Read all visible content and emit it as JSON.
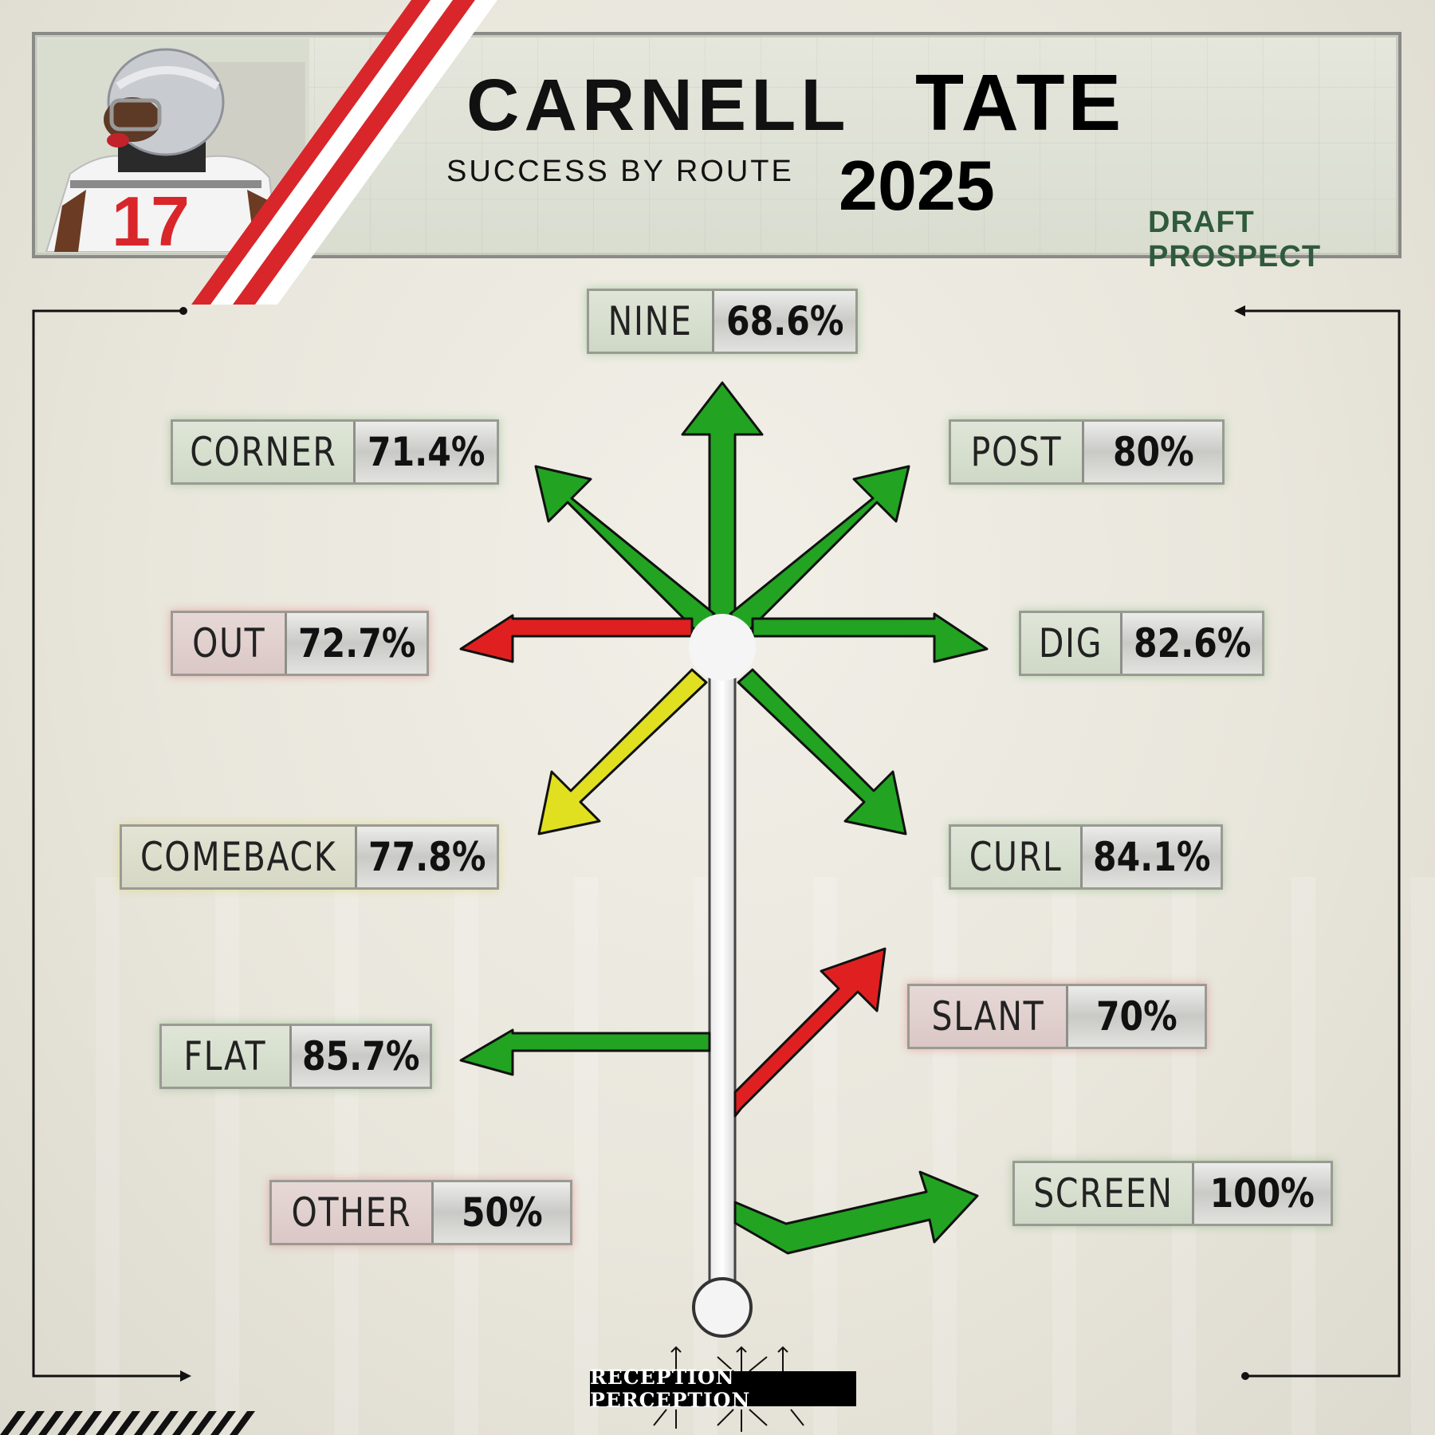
{
  "header": {
    "first_name": "CARNELL",
    "last_name": "TATE",
    "subtitle": "SUCCESS BY ROUTE",
    "year": "2025",
    "tag": "DRAFT PROSPECT",
    "jersey_number": "17"
  },
  "routes": [
    {
      "name": "NINE",
      "pct": "68.6%",
      "color": "#22a322"
    },
    {
      "name": "CORNER",
      "pct": "71.4%",
      "color": "#22a322"
    },
    {
      "name": "POST",
      "pct": "80%",
      "color": "#22a322"
    },
    {
      "name": "OUT",
      "pct": "72.7%",
      "color": "#e02020"
    },
    {
      "name": "DIG",
      "pct": "82.6%",
      "color": "#22a322"
    },
    {
      "name": "COMEBACK",
      "pct": "77.8%",
      "color": "#e0e020"
    },
    {
      "name": "CURL",
      "pct": "84.1%",
      "color": "#22a322"
    },
    {
      "name": "SLANT",
      "pct": "70%",
      "color": "#e02020"
    },
    {
      "name": "FLAT",
      "pct": "85.7%",
      "color": "#22a322"
    },
    {
      "name": "OTHER",
      "pct": "50%",
      "color": "#e02020"
    },
    {
      "name": "SCREEN",
      "pct": "100%",
      "color": "#22a322"
    }
  ],
  "footer": {
    "logo_text": "RECEPTION PERCEPTION"
  },
  "colors": {
    "green": "#22a322",
    "red": "#e02020",
    "yellow": "#e0e020",
    "team_red": "#d8262a",
    "prospect_green": "#2f5a3c"
  }
}
